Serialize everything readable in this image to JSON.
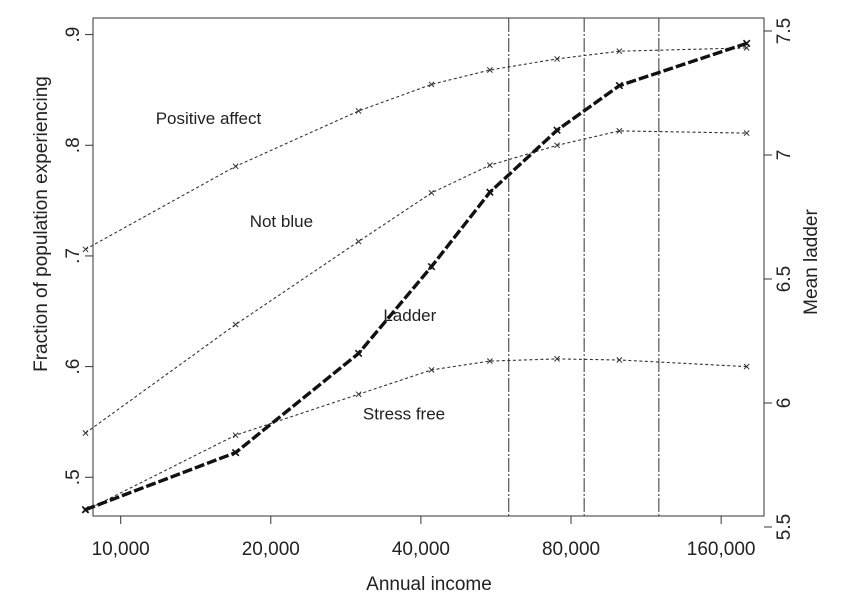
{
  "chart_data": {
    "type": "line",
    "xlabel": "Annual income",
    "ylabel_left": "Fraction of population experiencing",
    "ylabel_right": "Mean ladder",
    "x_scale": "log",
    "x_ticks": [
      {
        "value": 10000,
        "label": "10,000"
      },
      {
        "value": 20000,
        "label": "20,000"
      },
      {
        "value": 40000,
        "label": "40,000"
      },
      {
        "value": 80000,
        "label": "80,000"
      },
      {
        "value": 160000,
        "label": "160,000"
      }
    ],
    "y_left_ticks": [
      {
        "value": 0.5,
        "label": ".5"
      },
      {
        "value": 0.6,
        "label": ".6"
      },
      {
        "value": 0.7,
        "label": ".7"
      },
      {
        "value": 0.8,
        "label": ".8"
      },
      {
        "value": 0.9,
        "label": ".9"
      }
    ],
    "y_right_ticks": [
      {
        "value": 5.5,
        "label": "5.5"
      },
      {
        "value": 6,
        "label": "6"
      },
      {
        "value": 6.5,
        "label": "6.5"
      },
      {
        "value": 7,
        "label": "7"
      },
      {
        "value": 7.5,
        "label": "7.5"
      }
    ],
    "xlim": [
      8800,
      195000
    ],
    "ylim_left": [
      0.465,
      0.915
    ],
    "ylim_right": [
      5.5,
      7.5
    ],
    "vertical_lines_x": [
      60000,
      85000,
      120000
    ],
    "grid": false,
    "series": [
      {
        "name": "Positive affect",
        "axis": "left",
        "style": "dotted",
        "color": "#333333",
        "x": [
          8500,
          17000,
          30000,
          42000,
          55000,
          75000,
          100000,
          180000
        ],
        "y": [
          0.706,
          0.781,
          0.831,
          0.855,
          0.868,
          0.878,
          0.885,
          0.888
        ]
      },
      {
        "name": "Not blue",
        "axis": "left",
        "style": "dotted",
        "color": "#333333",
        "x": [
          8500,
          17000,
          30000,
          42000,
          55000,
          75000,
          100000,
          180000
        ],
        "y": [
          0.54,
          0.638,
          0.713,
          0.757,
          0.782,
          0.8,
          0.813,
          0.811
        ]
      },
      {
        "name": "Stress free",
        "axis": "left",
        "style": "dotted",
        "color": "#333333",
        "x": [
          8500,
          17000,
          30000,
          42000,
          55000,
          75000,
          100000,
          180000
        ],
        "y": [
          0.47,
          0.538,
          0.575,
          0.597,
          0.605,
          0.607,
          0.606,
          0.6
        ]
      },
      {
        "name": "Ladder",
        "axis": "right",
        "style": "bold-dashed",
        "color": "#111111",
        "x": [
          8500,
          17000,
          30000,
          42000,
          55000,
          75000,
          100000,
          180000
        ],
        "y": [
          5.57,
          5.8,
          6.2,
          6.55,
          6.85,
          7.1,
          7.28,
          7.45
        ]
      }
    ],
    "annotations": [
      {
        "text": "Positive affect",
        "x": 15000,
        "y": 0.819,
        "axis": "left"
      },
      {
        "text": "Not blue",
        "x": 21000,
        "y": 0.726,
        "axis": "left"
      },
      {
        "text": "Ladder",
        "x": 38000,
        "y": 0.641,
        "axis": "left"
      },
      {
        "text": "Stress free",
        "x": 37000,
        "y": 0.552,
        "axis": "left"
      }
    ]
  }
}
